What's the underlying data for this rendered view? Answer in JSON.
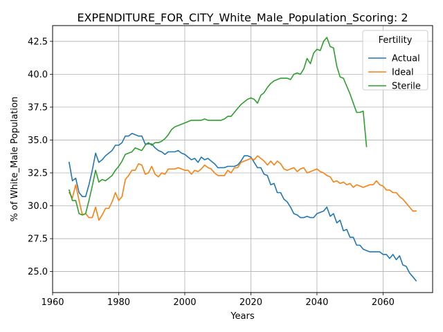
{
  "chart_data": {
    "type": "line",
    "title": "EXPENDITURE_FOR_CITY_White_Male_Population_Scoring: 2",
    "xlabel": "Years",
    "ylabel": "% of White_Male Population",
    "xlim": [
      1960,
      2075
    ],
    "ylim": [
      23.4,
      43.7
    ],
    "xticks": [
      1960,
      1980,
      2000,
      2020,
      2040,
      2060
    ],
    "xtick_labels": [
      "1960",
      "1980",
      "2000",
      "2020",
      "2040",
      "2060"
    ],
    "yticks": [
      25.0,
      27.5,
      30.0,
      32.5,
      35.0,
      37.5,
      40.0,
      42.5
    ],
    "ytick_labels": [
      "25.0",
      "27.5",
      "30.0",
      "32.5",
      "35.0",
      "37.5",
      "40.0",
      "42.5"
    ],
    "grid": true,
    "legend": {
      "title": "Fertility",
      "placement": "top-right"
    },
    "series": [
      {
        "name": "Actual",
        "color": "#1f77b4",
        "x": [
          1965,
          1966,
          1967,
          1968,
          1969,
          1970,
          1971,
          1972,
          1973,
          1974,
          1975,
          1976,
          1977,
          1978,
          1979,
          1980,
          1981,
          1982,
          1983,
          1984,
          1985,
          1986,
          1987,
          1988,
          1989,
          1990,
          1991,
          1992,
          1993,
          1994,
          1995,
          1996,
          1997,
          1998,
          1999,
          2000,
          2001,
          2002,
          2003,
          2004,
          2005,
          2006,
          2007,
          2008,
          2009,
          2010,
          2011,
          2012,
          2013,
          2014,
          2015,
          2016,
          2017,
          2018,
          2019,
          2020,
          2021,
          2022,
          2023,
          2024,
          2025,
          2026,
          2027,
          2028,
          2029,
          2030,
          2031,
          2032,
          2033,
          2034,
          2035,
          2036,
          2037,
          2038,
          2039,
          2040,
          2041,
          2042,
          2043,
          2044,
          2045,
          2046,
          2047,
          2048,
          2049,
          2050,
          2051,
          2052,
          2053,
          2054,
          2055,
          2056,
          2057,
          2058,
          2059,
          2060,
          2061,
          2062,
          2063,
          2064,
          2065,
          2066,
          2067,
          2068,
          2069,
          2070
        ],
        "y": [
          33.3,
          31.9,
          32.1,
          31.0,
          30.7,
          30.7,
          31.6,
          32.7,
          34.0,
          33.3,
          33.5,
          33.8,
          34.0,
          34.2,
          34.6,
          34.6,
          34.8,
          35.3,
          35.3,
          35.5,
          35.4,
          35.3,
          35.3,
          34.7,
          34.7,
          34.7,
          34.4,
          34.2,
          34.1,
          33.9,
          34.1,
          34.1,
          34.1,
          34.2,
          34.0,
          33.9,
          33.7,
          33.5,
          33.6,
          33.3,
          33.7,
          33.5,
          33.6,
          33.4,
          33.2,
          32.9,
          32.9,
          32.9,
          33.0,
          33.0,
          33.0,
          33.1,
          33.4,
          33.8,
          33.8,
          33.7,
          33.3,
          32.9,
          32.9,
          32.4,
          32.3,
          31.6,
          31.7,
          31.0,
          31.0,
          30.5,
          30.3,
          29.9,
          29.4,
          29.3,
          29.1,
          29.1,
          29.2,
          29.1,
          29.1,
          29.4,
          29.5,
          29.6,
          29.9,
          29.2,
          29.4,
          28.7,
          28.9,
          28.1,
          28.2,
          27.6,
          27.6,
          27.0,
          27.0,
          26.7,
          26.6,
          26.5,
          26.5,
          26.5,
          26.5,
          26.3,
          26.3,
          26.0,
          26.3,
          25.9,
          26.2,
          25.5,
          25.4,
          24.9,
          24.6,
          24.3
        ]
      },
      {
        "name": "Ideal",
        "color": "#ff7f0e",
        "x": [
          1965,
          1966,
          1967,
          1968,
          1969,
          1970,
          1971,
          1972,
          1973,
          1974,
          1975,
          1976,
          1977,
          1978,
          1979,
          1980,
          1981,
          1982,
          1983,
          1984,
          1985,
          1986,
          1987,
          1988,
          1989,
          1990,
          1991,
          1992,
          1993,
          1994,
          1995,
          1996,
          1997,
          1998,
          1999,
          2000,
          2001,
          2002,
          2003,
          2004,
          2005,
          2006,
          2007,
          2008,
          2009,
          2010,
          2011,
          2012,
          2013,
          2014,
          2015,
          2016,
          2017,
          2018,
          2019,
          2020,
          2021,
          2022,
          2023,
          2024,
          2025,
          2026,
          2027,
          2028,
          2029,
          2030,
          2031,
          2032,
          2033,
          2034,
          2035,
          2036,
          2037,
          2038,
          2039,
          2040,
          2041,
          2042,
          2043,
          2044,
          2045,
          2046,
          2047,
          2048,
          2049,
          2050,
          2051,
          2052,
          2053,
          2054,
          2055,
          2056,
          2057,
          2058,
          2059,
          2060,
          2061,
          2062,
          2063,
          2064,
          2065,
          2066,
          2067,
          2068,
          2069,
          2070
        ],
        "y": [
          31.0,
          30.6,
          31.6,
          30.4,
          29.3,
          29.4,
          29.1,
          29.1,
          29.9,
          28.9,
          29.3,
          29.8,
          29.8,
          30.3,
          31.0,
          30.4,
          30.7,
          32.0,
          32.3,
          32.7,
          32.7,
          33.2,
          33.1,
          32.4,
          32.5,
          33.0,
          32.4,
          32.2,
          32.5,
          32.4,
          32.8,
          32.8,
          32.8,
          32.9,
          32.8,
          32.7,
          32.7,
          32.4,
          32.7,
          32.6,
          32.8,
          33.1,
          32.9,
          32.8,
          32.5,
          32.3,
          32.3,
          32.3,
          32.7,
          32.5,
          32.9,
          32.9,
          33.3,
          33.4,
          33.5,
          33.6,
          33.5,
          33.8,
          33.6,
          33.4,
          33.1,
          33.4,
          33.1,
          33.4,
          33.2,
          32.8,
          32.7,
          32.8,
          32.9,
          32.6,
          32.8,
          32.9,
          32.5,
          32.6,
          32.7,
          32.8,
          32.6,
          32.5,
          32.3,
          32.2,
          31.8,
          31.9,
          31.7,
          31.8,
          31.6,
          31.7,
          31.4,
          31.6,
          31.5,
          31.4,
          31.5,
          31.6,
          31.6,
          31.9,
          31.6,
          31.5,
          31.2,
          31.2,
          31.0,
          31.0,
          30.7,
          30.5,
          30.2,
          29.9,
          29.6,
          29.6
        ]
      },
      {
        "name": "Sterile",
        "color": "#2ca02c",
        "x": [
          1965,
          1966,
          1967,
          1968,
          1969,
          1970,
          1971,
          1972,
          1973,
          1974,
          1975,
          1976,
          1977,
          1978,
          1979,
          1980,
          1981,
          1982,
          1983,
          1984,
          1985,
          1986,
          1987,
          1988,
          1989,
          1990,
          1991,
          1992,
          1993,
          1994,
          1995,
          1996,
          1997,
          1998,
          1999,
          2000,
          2001,
          2002,
          2003,
          2004,
          2005,
          2006,
          2007,
          2008,
          2009,
          2010,
          2011,
          2012,
          2013,
          2014,
          2015,
          2016,
          2017,
          2018,
          2019,
          2020,
          2021,
          2022,
          2023,
          2024,
          2025,
          2026,
          2027,
          2028,
          2029,
          2030,
          2031,
          2032,
          2033,
          2034,
          2035,
          2036,
          2037,
          2038,
          2039,
          2040,
          2041,
          2042,
          2043,
          2044,
          2045,
          2046,
          2047,
          2048,
          2049,
          2050,
          2051,
          2052,
          2053,
          2054,
          2055
        ],
        "y": [
          31.2,
          30.4,
          30.4,
          29.4,
          29.3,
          29.4,
          30.4,
          31.5,
          32.7,
          31.8,
          32.0,
          31.9,
          32.1,
          32.3,
          32.7,
          33.0,
          33.4,
          33.9,
          34.0,
          34.1,
          34.4,
          34.3,
          34.2,
          34.6,
          34.8,
          34.6,
          34.8,
          34.8,
          34.9,
          35.1,
          35.4,
          35.8,
          36.0,
          36.1,
          36.2,
          36.3,
          36.4,
          36.5,
          36.5,
          36.5,
          36.5,
          36.6,
          36.5,
          36.5,
          36.5,
          36.5,
          36.5,
          36.6,
          36.8,
          36.8,
          37.1,
          37.4,
          37.7,
          37.9,
          38.1,
          38.2,
          38.1,
          37.8,
          38.4,
          38.6,
          39.0,
          39.3,
          39.5,
          39.6,
          39.7,
          39.7,
          39.7,
          39.6,
          40.0,
          40.1,
          40.0,
          40.4,
          41.2,
          40.8,
          41.6,
          41.9,
          41.8,
          42.5,
          42.8,
          42.1,
          42.0,
          40.6,
          39.8,
          39.7,
          39.1,
          38.5,
          37.8,
          37.1,
          37.1,
          37.2,
          34.5
        ]
      }
    ]
  }
}
